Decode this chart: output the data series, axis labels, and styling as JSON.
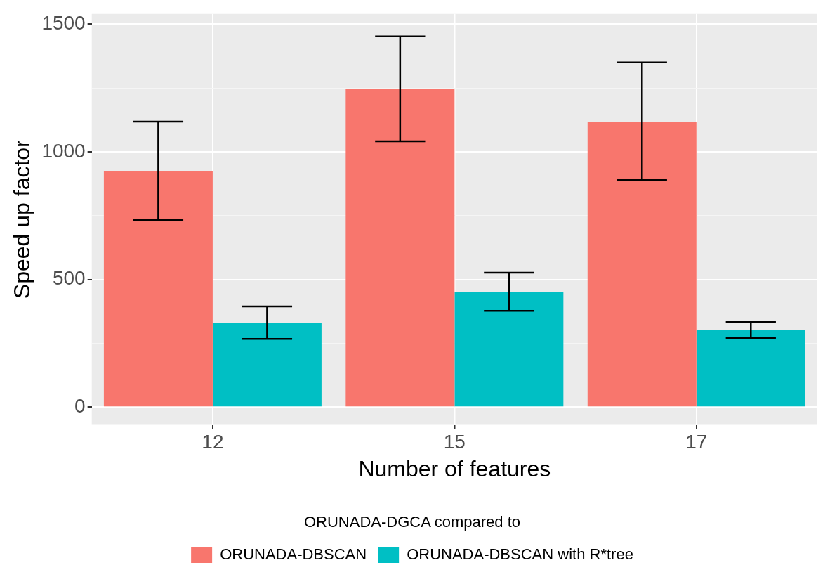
{
  "chart_data": {
    "type": "bar",
    "xlabel": "Number of features",
    "ylabel": "Speed up factor",
    "legend_title": "ORUNADA-DGCA compared to",
    "categories": [
      "12",
      "15",
      "17"
    ],
    "series": [
      {
        "name": "ORUNADA-DBSCAN",
        "color": "#f8766d",
        "values": [
          925,
          1245,
          1118
        ],
        "errors": [
          [
            733,
            1118
          ],
          [
            1041,
            1452
          ],
          [
            890,
            1350
          ]
        ]
      },
      {
        "name": "ORUNADA-DBSCAN with R*tree",
        "color": "#00bfc4",
        "values": [
          331,
          452,
          303
        ],
        "errors": [
          [
            267,
            394
          ],
          [
            377,
            526
          ],
          [
            270,
            333
          ]
        ]
      }
    ],
    "ylim": [
      -70,
      1540
    ],
    "yticks": [
      0,
      {
        "value": 250,
        "label": null
      },
      500,
      {
        "value": 750,
        "label": null
      },
      1000,
      {
        "value": 1250,
        "label": null
      },
      1500
    ],
    "grid": true,
    "legend": "bottom"
  }
}
